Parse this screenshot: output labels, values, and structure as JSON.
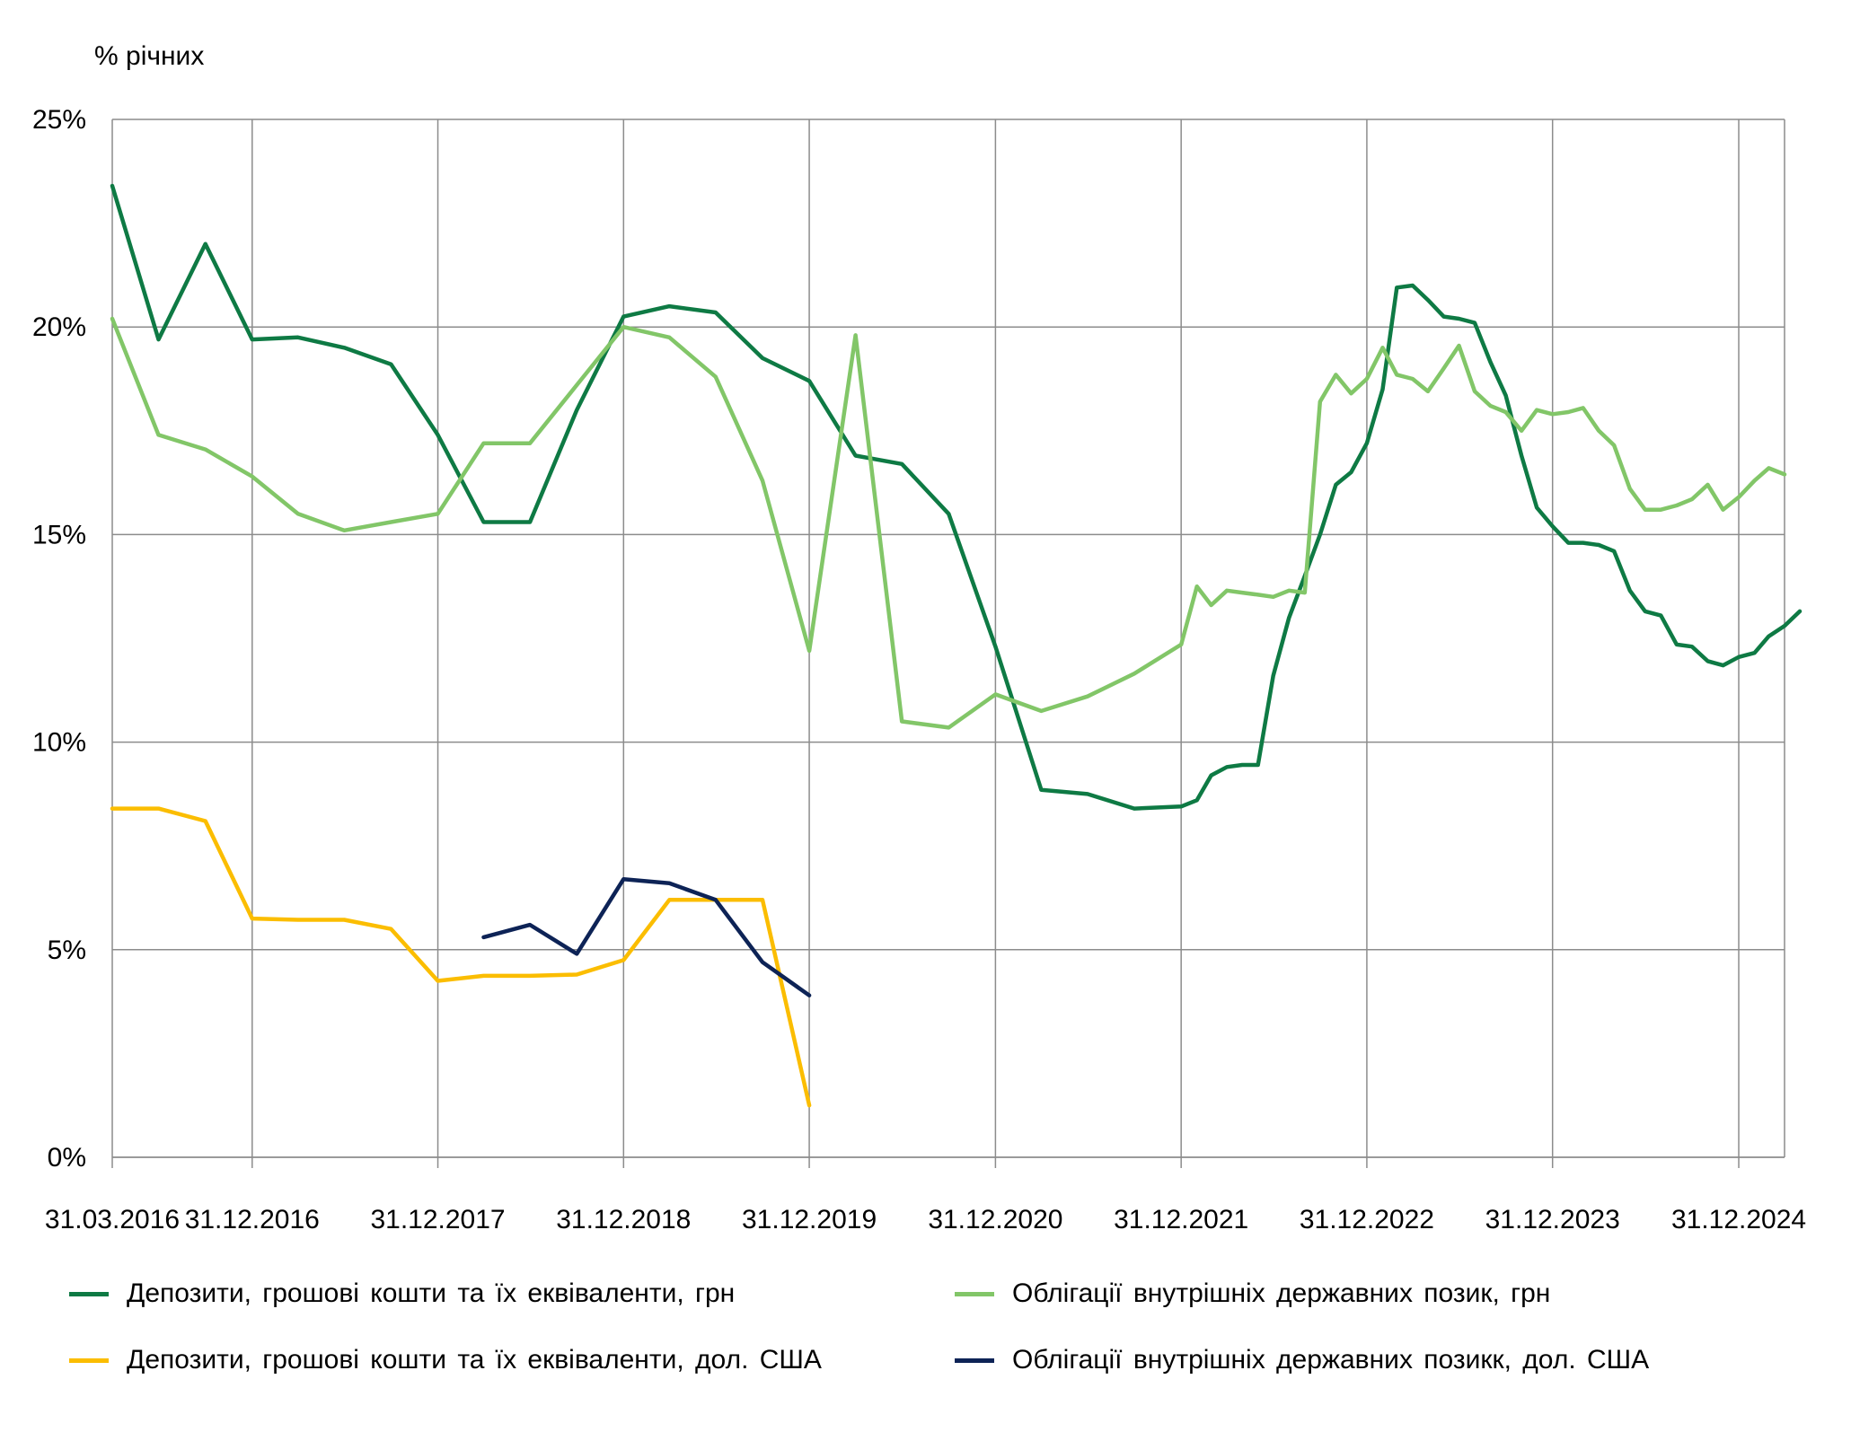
{
  "chart_data": {
    "type": "line",
    "title": "",
    "ylabel": "% річних",
    "xlabel": "",
    "ylim": [
      0,
      25
    ],
    "yticks": [
      0,
      5,
      10,
      15,
      20,
      25
    ],
    "ytick_labels": [
      "0%",
      "5%",
      "10%",
      "15%",
      "20%",
      "25%"
    ],
    "xlim": [
      "2016-03-31",
      "2025-03-31"
    ],
    "xticks": [
      "2016-03-31",
      "2016-12-31",
      "2017-12-31",
      "2018-12-31",
      "2019-12-31",
      "2020-12-31",
      "2021-12-31",
      "2022-12-31",
      "2023-12-31",
      "2024-12-31"
    ],
    "xtick_labels": [
      "31.03.2016",
      "31.12.2016",
      "31.12.2017",
      "31.12.2018",
      "31.12.2019",
      "31.12.2020",
      "31.12.2021",
      "31.12.2022",
      "31.12.2023",
      "31.12.2024"
    ],
    "grid": true,
    "legend_position": "bottom",
    "series": [
      {
        "name": "Депозити, грошові кошти та їх еквіваленти, грн",
        "color": "#0e7a44",
        "points": [
          [
            "2016-03-31",
            23.4
          ],
          [
            "2016-06-30",
            19.7
          ],
          [
            "2016-09-30",
            22.0
          ],
          [
            "2016-12-31",
            19.7
          ],
          [
            "2017-03-31",
            19.75
          ],
          [
            "2017-06-30",
            19.5
          ],
          [
            "2017-09-30",
            19.1
          ],
          [
            "2017-12-31",
            17.4
          ],
          [
            "2018-03-31",
            15.3
          ],
          [
            "2018-06-30",
            15.3
          ],
          [
            "2018-09-30",
            18.0
          ],
          [
            "2018-12-31",
            20.25
          ],
          [
            "2019-03-31",
            20.5
          ],
          [
            "2019-06-30",
            20.35
          ],
          [
            "2019-09-30",
            19.25
          ],
          [
            "2019-12-31",
            18.7
          ],
          [
            "2020-03-31",
            16.9
          ],
          [
            "2020-06-30",
            16.7
          ],
          [
            "2020-09-30",
            15.5
          ],
          [
            "2020-12-31",
            12.3
          ],
          [
            "2021-03-31",
            8.85
          ],
          [
            "2021-06-30",
            8.75
          ],
          [
            "2021-09-30",
            8.4
          ],
          [
            "2021-12-31",
            8.45
          ],
          [
            "2022-01-31",
            8.6
          ],
          [
            "2022-02-28",
            9.2
          ],
          [
            "2022-03-31",
            9.4
          ],
          [
            "2022-04-30",
            9.45
          ],
          [
            "2022-05-31",
            9.45
          ],
          [
            "2022-06-30",
            11.6
          ],
          [
            "2022-07-31",
            13.0
          ],
          [
            "2022-08-31",
            14.0
          ],
          [
            "2022-09-30",
            15.0
          ],
          [
            "2022-10-31",
            16.2
          ],
          [
            "2022-11-30",
            16.5
          ],
          [
            "2022-12-31",
            17.2
          ],
          [
            "2023-01-31",
            18.5
          ],
          [
            "2023-02-28",
            20.95
          ],
          [
            "2023-03-31",
            21.0
          ],
          [
            "2023-04-30",
            20.65
          ],
          [
            "2023-05-31",
            20.25
          ],
          [
            "2023-06-30",
            20.2
          ],
          [
            "2023-07-31",
            20.1
          ],
          [
            "2023-08-31",
            19.15
          ],
          [
            "2023-09-30",
            18.35
          ],
          [
            "2023-10-31",
            16.9
          ],
          [
            "2023-11-30",
            15.65
          ],
          [
            "2023-12-31",
            15.2
          ],
          [
            "2024-01-31",
            14.8
          ],
          [
            "2024-02-29",
            14.8
          ],
          [
            "2024-03-31",
            14.75
          ],
          [
            "2024-04-30",
            14.6
          ],
          [
            "2024-05-31",
            13.65
          ],
          [
            "2024-06-30",
            13.15
          ],
          [
            "2024-07-31",
            13.05
          ],
          [
            "2024-08-31",
            12.35
          ],
          [
            "2024-09-30",
            12.3
          ],
          [
            "2024-10-31",
            11.95
          ],
          [
            "2024-11-30",
            11.85
          ],
          [
            "2024-12-31",
            12.05
          ],
          [
            "2025-01-31",
            12.15
          ],
          [
            "2025-02-28",
            12.55
          ],
          [
            "2025-03-31",
            12.8
          ],
          [
            "2025-04-30",
            13.15
          ]
        ]
      },
      {
        "name": "Облігації внутрішніх державних позик, грн",
        "color": "#82c668",
        "points": [
          [
            "2016-03-31",
            20.2
          ],
          [
            "2016-06-30",
            17.4
          ],
          [
            "2016-09-30",
            17.05
          ],
          [
            "2016-12-31",
            16.4
          ],
          [
            "2017-03-31",
            15.5
          ],
          [
            "2017-06-30",
            15.1
          ],
          [
            "2017-09-30",
            15.3
          ],
          [
            "2017-12-31",
            15.5
          ],
          [
            "2018-03-31",
            17.2
          ],
          [
            "2018-06-30",
            17.2
          ],
          [
            "2018-09-30",
            18.6
          ],
          [
            "2018-12-31",
            20.0
          ],
          [
            "2019-03-31",
            19.75
          ],
          [
            "2019-06-30",
            18.8
          ],
          [
            "2019-09-30",
            16.3
          ],
          [
            "2019-12-31",
            12.2
          ],
          [
            "2020-03-31",
            19.8
          ],
          [
            "2020-06-30",
            10.5
          ],
          [
            "2020-09-30",
            10.35
          ],
          [
            "2020-12-31",
            11.15
          ],
          [
            "2021-03-31",
            10.75
          ],
          [
            "2021-06-30",
            11.1
          ],
          [
            "2021-09-30",
            11.65
          ],
          [
            "2021-12-31",
            12.35
          ],
          [
            "2022-01-31",
            13.75
          ],
          [
            "2022-02-28",
            13.3
          ],
          [
            "2022-03-31",
            13.65
          ],
          [
            "2022-04-30",
            13.6
          ],
          [
            "2022-05-31",
            13.55
          ],
          [
            "2022-06-30",
            13.5
          ],
          [
            "2022-07-31",
            13.65
          ],
          [
            "2022-08-31",
            13.6
          ],
          [
            "2022-09-30",
            18.2
          ],
          [
            "2022-10-31",
            18.85
          ],
          [
            "2022-11-30",
            18.4
          ],
          [
            "2022-12-31",
            18.75
          ],
          [
            "2023-01-31",
            19.5
          ],
          [
            "2023-02-28",
            18.85
          ],
          [
            "2023-03-31",
            18.75
          ],
          [
            "2023-04-30",
            18.45
          ],
          [
            "2023-05-31",
            19.0
          ],
          [
            "2023-06-30",
            19.55
          ],
          [
            "2023-07-31",
            18.45
          ],
          [
            "2023-08-31",
            18.1
          ],
          [
            "2023-09-30",
            17.95
          ],
          [
            "2023-10-31",
            17.5
          ],
          [
            "2023-11-30",
            18.0
          ],
          [
            "2023-12-31",
            17.9
          ],
          [
            "2024-01-31",
            17.95
          ],
          [
            "2024-02-29",
            18.05
          ],
          [
            "2024-03-31",
            17.5
          ],
          [
            "2024-04-30",
            17.15
          ],
          [
            "2024-05-31",
            16.1
          ],
          [
            "2024-06-30",
            15.6
          ],
          [
            "2024-07-31",
            15.6
          ],
          [
            "2024-08-31",
            15.7
          ],
          [
            "2024-09-30",
            15.85
          ],
          [
            "2024-10-31",
            16.2
          ],
          [
            "2024-11-30",
            15.6
          ],
          [
            "2024-12-31",
            15.9
          ],
          [
            "2025-01-31",
            16.3
          ],
          [
            "2025-02-28",
            16.6
          ],
          [
            "2025-03-31",
            16.45
          ]
        ]
      },
      {
        "name": "Депозити, грошові кошти та їх еквіваленти, дол. США",
        "color": "#fbbd00",
        "points": [
          [
            "2016-03-31",
            8.4
          ],
          [
            "2016-06-30",
            8.4
          ],
          [
            "2016-09-30",
            8.1
          ],
          [
            "2016-12-31",
            5.75
          ],
          [
            "2017-03-31",
            5.72
          ],
          [
            "2017-06-30",
            5.72
          ],
          [
            "2017-09-30",
            5.5
          ],
          [
            "2017-12-31",
            4.25
          ],
          [
            "2018-03-31",
            4.37
          ],
          [
            "2018-06-30",
            4.37
          ],
          [
            "2018-09-30",
            4.4
          ],
          [
            "2018-12-31",
            4.75
          ],
          [
            "2019-03-31",
            6.2
          ],
          [
            "2019-06-30",
            6.2
          ],
          [
            "2019-09-30",
            6.2
          ],
          [
            "2019-12-31",
            1.25
          ]
        ]
      },
      {
        "name": "Облігації внутрішніх державних позикк, дол. США",
        "color": "#0d2356",
        "points": [
          [
            "2018-03-31",
            5.3
          ],
          [
            "2018-06-30",
            5.6
          ],
          [
            "2018-09-30",
            4.9
          ],
          [
            "2018-12-31",
            6.7
          ],
          [
            "2019-03-31",
            6.6
          ],
          [
            "2019-06-30",
            6.2
          ],
          [
            "2019-09-30",
            4.7
          ],
          [
            "2019-12-31",
            3.9
          ]
        ]
      }
    ]
  }
}
